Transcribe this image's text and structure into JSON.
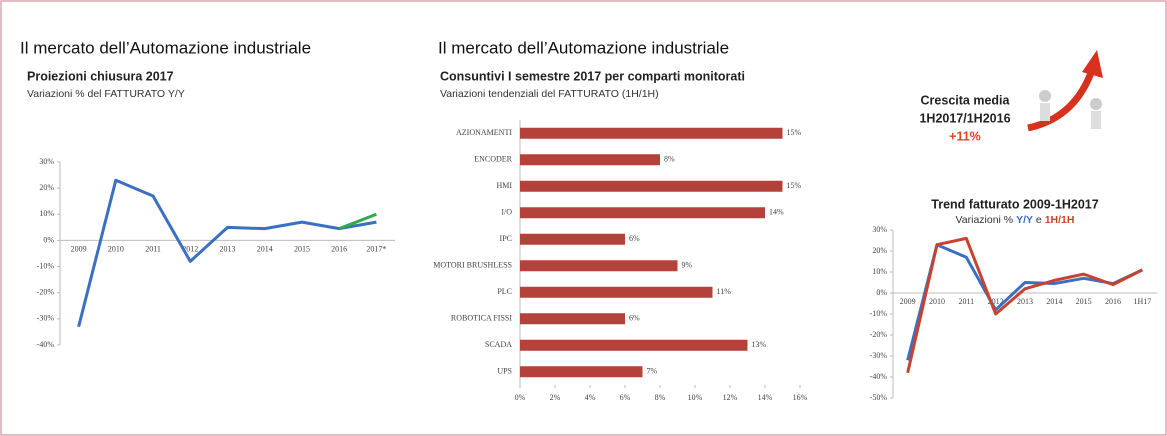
{
  "callout": {
    "title": "Crescita media",
    "period": "1H2017/1H2016",
    "value": "+11%"
  },
  "chart_data": [
    {
      "type": "line",
      "title": "Il mercato dell’Automazione industriale",
      "subtitle": "Proiezioni chiusura 2017",
      "subtitle2": "Variazioni % del FATTURATO Y/Y",
      "categories": [
        "2009",
        "2010",
        "2011",
        "2012",
        "2013",
        "2014",
        "2015",
        "2016",
        "2017*"
      ],
      "series": [
        {
          "color": "#3a6fc4",
          "values": [
            -33,
            23,
            17,
            -8,
            5,
            4.5,
            7,
            4.5,
            7
          ]
        },
        {
          "color": "#2eaa4a",
          "values": [
            null,
            null,
            null,
            null,
            null,
            null,
            null,
            4.5,
            10
          ]
        }
      ],
      "ylim": [
        -40,
        30
      ],
      "yticks": [
        {
          "value": 30,
          "label": "30%"
        },
        {
          "value": 20,
          "label": "20%"
        },
        {
          "value": 10,
          "label": "10%"
        },
        {
          "value": 0,
          "label": "0%"
        },
        {
          "value": -10,
          "label": "-10%"
        },
        {
          "value": -20,
          "label": "-20%"
        },
        {
          "value": -30,
          "label": "-30%"
        },
        {
          "value": -40,
          "label": "-40%"
        }
      ]
    },
    {
      "type": "hbar",
      "title": "Il mercato dell’Automazione industriale",
      "subtitle": "Consuntivi I semestre 2017 per comparti monitorati",
      "subtitle2": "Variazioni tendenziali del FATTURATO (1H/1H)",
      "categories": [
        "AZIONAMENTI",
        "ENCODER",
        "HMI",
        "I/O",
        "IPC",
        "MOTORI BRUSHLESS",
        "PLC",
        "ROBOTICA FISSI",
        "SCADA",
        "UPS"
      ],
      "values": [
        15,
        8,
        15,
        14,
        6,
        9,
        11,
        6,
        13,
        7
      ],
      "value_labels": [
        "15%",
        "8%",
        "15%",
        "14%",
        "6%",
        "9%",
        "11%",
        "6%",
        "13%",
        "7%"
      ],
      "color": "#b5423a",
      "xlim": [
        0,
        16
      ],
      "xticks": [
        {
          "value": 0,
          "label": "0%"
        },
        {
          "value": 2,
          "label": "2%"
        },
        {
          "value": 4,
          "label": "4%"
        },
        {
          "value": 6,
          "label": "6%"
        },
        {
          "value": 8,
          "label": "8%"
        },
        {
          "value": 10,
          "label": "10%"
        },
        {
          "value": 12,
          "label": "12%"
        },
        {
          "value": 14,
          "label": "14%"
        },
        {
          "value": 16,
          "label": "16%"
        }
      ]
    },
    {
      "type": "line",
      "title": "Trend fatturato 2009-1H2017",
      "subtitle": "Variazioni %",
      "legend_joiner": "e",
      "categories": [
        "2009",
        "2010",
        "2011",
        "2012",
        "2013",
        "2014",
        "2015",
        "2016",
        "1H17"
      ],
      "series": [
        {
          "name": "Y/Y",
          "color": "#3a6fc4",
          "values": [
            -32,
            23,
            17,
            -8,
            5,
            4.5,
            7,
            4.5,
            11
          ]
        },
        {
          "name": "1H/1H",
          "color": "#c8432f",
          "values": [
            -38,
            23,
            26,
            -10,
            2,
            6,
            9,
            4,
            11
          ]
        }
      ],
      "ylim": [
        -50,
        30
      ],
      "yticks": [
        {
          "value": 30,
          "label": "30%"
        },
        {
          "value": 20,
          "label": "20%"
        },
        {
          "value": 10,
          "label": "10%"
        },
        {
          "value": 0,
          "label": "0%"
        },
        {
          "value": -10,
          "label": "-10%"
        },
        {
          "value": -20,
          "label": "-20%"
        },
        {
          "value": -30,
          "label": "-30%"
        },
        {
          "value": -40,
          "label": "-40%"
        },
        {
          "value": -50,
          "label": "-50%"
        }
      ]
    }
  ]
}
